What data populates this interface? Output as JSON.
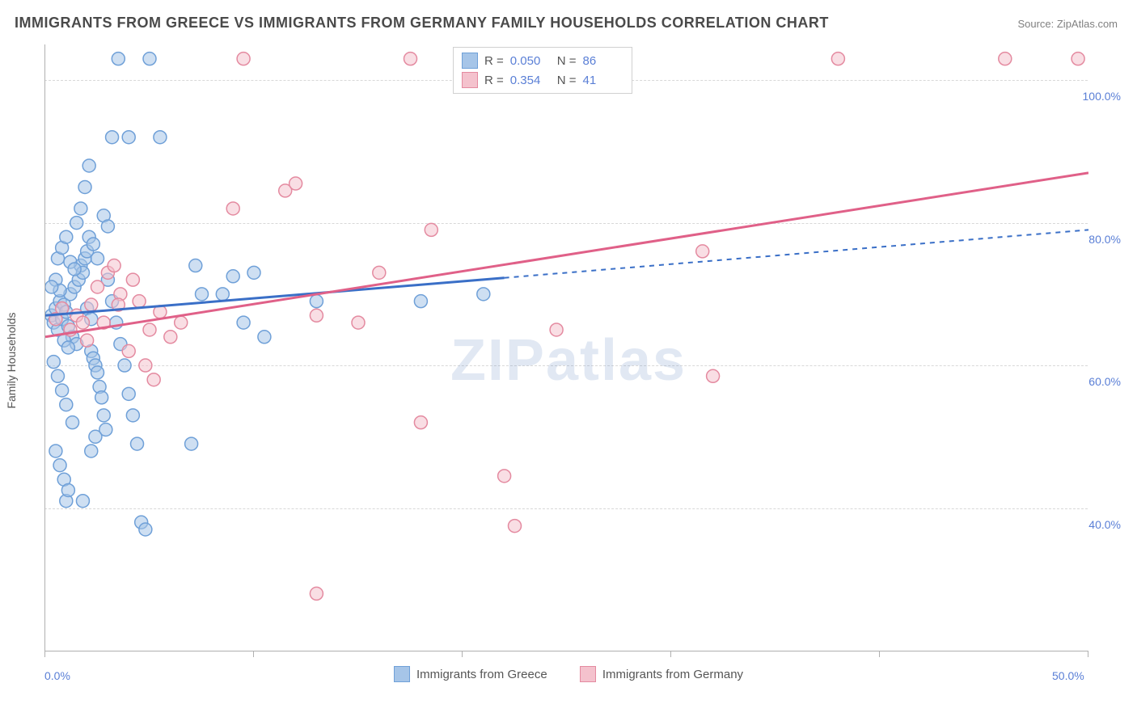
{
  "title": "IMMIGRANTS FROM GREECE VS IMMIGRANTS FROM GERMANY FAMILY HOUSEHOLDS CORRELATION CHART",
  "source": "Source: ZipAtlas.com",
  "watermark": "ZIPatlas",
  "chart": {
    "type": "scatter-with-regression",
    "background_color": "#ffffff",
    "grid_color": "#d8d8d8",
    "axis_color": "#b0b0b0",
    "ylabel": "Family Households",
    "ylabel_fontsize": 14,
    "xlim": [
      0,
      50
    ],
    "ylim": [
      20,
      105
    ],
    "x_ticks": [
      0,
      10,
      20,
      30,
      40,
      50
    ],
    "x_tick_labels": {
      "0": "0.0%",
      "50": "50.0%"
    },
    "y_ticks": [
      40,
      60,
      80,
      100
    ],
    "y_tick_labels": {
      "40": "40.0%",
      "60": "60.0%",
      "80": "80.0%",
      "100": "100.0%"
    },
    "tick_label_color": "#5a7fd6",
    "tick_label_fontsize": 14,
    "marker_radius": 8,
    "marker_stroke_width": 1.5,
    "line_width": 3,
    "series": [
      {
        "id": "greece",
        "label": "Immigrants from Greece",
        "fill_color": "#a6c5e8",
        "stroke_color": "#6fa0d8",
        "fill_opacity": 0.55,
        "R": "0.050",
        "N": "86",
        "regression": {
          "x1": 0,
          "y1": 67,
          "x2": 50,
          "y2": 79,
          "solid_until_x": 22,
          "color": "#3a6fc7",
          "dash": "6 6"
        },
        "points": [
          [
            0.3,
            67
          ],
          [
            0.4,
            66
          ],
          [
            0.5,
            68
          ],
          [
            0.6,
            65
          ],
          [
            0.7,
            69
          ],
          [
            0.8,
            66.5
          ],
          [
            0.9,
            68.5
          ],
          [
            1.0,
            67.5
          ],
          [
            1.1,
            65.5
          ],
          [
            1.2,
            70
          ],
          [
            1.3,
            64
          ],
          [
            1.4,
            71
          ],
          [
            1.5,
            63
          ],
          [
            1.6,
            72
          ],
          [
            1.7,
            74
          ],
          [
            1.8,
            73
          ],
          [
            1.9,
            75
          ],
          [
            2.0,
            76
          ],
          [
            2.1,
            78
          ],
          [
            2.2,
            62
          ],
          [
            2.3,
            61
          ],
          [
            2.4,
            60
          ],
          [
            2.5,
            59
          ],
          [
            2.6,
            57
          ],
          [
            2.7,
            55.5
          ],
          [
            2.8,
            53
          ],
          [
            2.9,
            51
          ],
          [
            1.0,
            41
          ],
          [
            1.8,
            41
          ],
          [
            2.2,
            48
          ],
          [
            2.4,
            50
          ],
          [
            3.0,
            72
          ],
          [
            3.2,
            69
          ],
          [
            3.4,
            66
          ],
          [
            3.6,
            63
          ],
          [
            3.8,
            60
          ],
          [
            4.0,
            56
          ],
          [
            4.2,
            53
          ],
          [
            4.4,
            49
          ],
          [
            4.6,
            38
          ],
          [
            4.8,
            37
          ],
          [
            1.5,
            80
          ],
          [
            1.7,
            82
          ],
          [
            1.9,
            85
          ],
          [
            2.1,
            88
          ],
          [
            2.3,
            77
          ],
          [
            2.5,
            75
          ],
          [
            3.5,
            103
          ],
          [
            5.0,
            103
          ],
          [
            3.2,
            92
          ],
          [
            4.0,
            92
          ],
          [
            5.5,
            92
          ],
          [
            7.0,
            49
          ],
          [
            7.2,
            74
          ],
          [
            7.5,
            70
          ],
          [
            8.5,
            70
          ],
          [
            9.0,
            72.5
          ],
          [
            10.0,
            73
          ],
          [
            9.5,
            66
          ],
          [
            10.5,
            64
          ],
          [
            13.0,
            69
          ],
          [
            0.6,
            75
          ],
          [
            0.8,
            76.5
          ],
          [
            1.0,
            78
          ],
          [
            1.2,
            74.5
          ],
          [
            1.4,
            73.5
          ],
          [
            0.5,
            72
          ],
          [
            0.7,
            70.5
          ],
          [
            0.9,
            63.5
          ],
          [
            1.1,
            62.5
          ],
          [
            0.4,
            60.5
          ],
          [
            0.6,
            58.5
          ],
          [
            0.8,
            56.5
          ],
          [
            1.0,
            54.5
          ],
          [
            2.8,
            81
          ],
          [
            3.0,
            79.5
          ],
          [
            0.5,
            48
          ],
          [
            0.7,
            46
          ],
          [
            0.9,
            44
          ],
          [
            1.1,
            42.5
          ],
          [
            1.3,
            52
          ],
          [
            2.0,
            68
          ],
          [
            2.2,
            66.5
          ],
          [
            18.0,
            69
          ],
          [
            21.0,
            70
          ],
          [
            0.3,
            71
          ]
        ]
      },
      {
        "id": "germany",
        "label": "Immigrants from Germany",
        "fill_color": "#f4c2cd",
        "stroke_color": "#e48aa0",
        "fill_opacity": 0.55,
        "R": "0.354",
        "N": "41",
        "regression": {
          "x1": 0,
          "y1": 64,
          "x2": 50,
          "y2": 87,
          "solid_until_x": 50,
          "color": "#e06088",
          "dash": ""
        },
        "points": [
          [
            0.5,
            66.5
          ],
          [
            0.8,
            68
          ],
          [
            1.2,
            65
          ],
          [
            1.5,
            67
          ],
          [
            1.8,
            66
          ],
          [
            2.0,
            63.5
          ],
          [
            2.2,
            68.5
          ],
          [
            2.5,
            71
          ],
          [
            3.0,
            73
          ],
          [
            3.3,
            74
          ],
          [
            3.6,
            70
          ],
          [
            4.0,
            62
          ],
          [
            4.5,
            69
          ],
          [
            5.0,
            65
          ],
          [
            5.2,
            58
          ],
          [
            5.5,
            67.5
          ],
          [
            6.0,
            64
          ],
          [
            6.5,
            66
          ],
          [
            9.0,
            82
          ],
          [
            11.5,
            84.5
          ],
          [
            12.0,
            85.5
          ],
          [
            13.0,
            67
          ],
          [
            15.0,
            66
          ],
          [
            16.0,
            73
          ],
          [
            18.0,
            52
          ],
          [
            18.5,
            79
          ],
          [
            22.0,
            44.5
          ],
          [
            24.5,
            65
          ],
          [
            22.5,
            37.5
          ],
          [
            13.0,
            28
          ],
          [
            4.2,
            72
          ],
          [
            4.8,
            60
          ],
          [
            2.8,
            66
          ],
          [
            3.5,
            68.5
          ],
          [
            31.5,
            76
          ],
          [
            32.0,
            58.5
          ],
          [
            9.5,
            103
          ],
          [
            17.5,
            103
          ],
          [
            38.0,
            103
          ],
          [
            46.0,
            103
          ],
          [
            49.5,
            103
          ]
        ]
      }
    ],
    "legend_top": {
      "R_label": "R =",
      "N_label": "N ="
    }
  }
}
